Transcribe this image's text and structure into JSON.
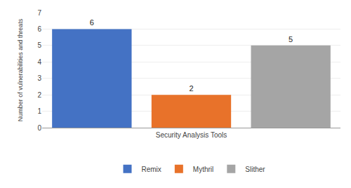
{
  "chart_data": {
    "type": "bar",
    "categories": [
      "Remix",
      "Mythril",
      "Slither"
    ],
    "values": [
      6,
      2,
      5
    ],
    "colors": [
      "#4472C4",
      "#E8722A",
      "#A5A5A5"
    ],
    "xlabel": "Security Analysis Tools",
    "ylabel": "Number of vulnerabilities and threats",
    "ylim": [
      0,
      7
    ],
    "yticks": [
      0,
      1,
      2,
      3,
      4,
      5,
      6,
      7
    ],
    "grid": true,
    "legend": "bottom",
    "data_labels": true,
    "tick_labels": "y"
  }
}
